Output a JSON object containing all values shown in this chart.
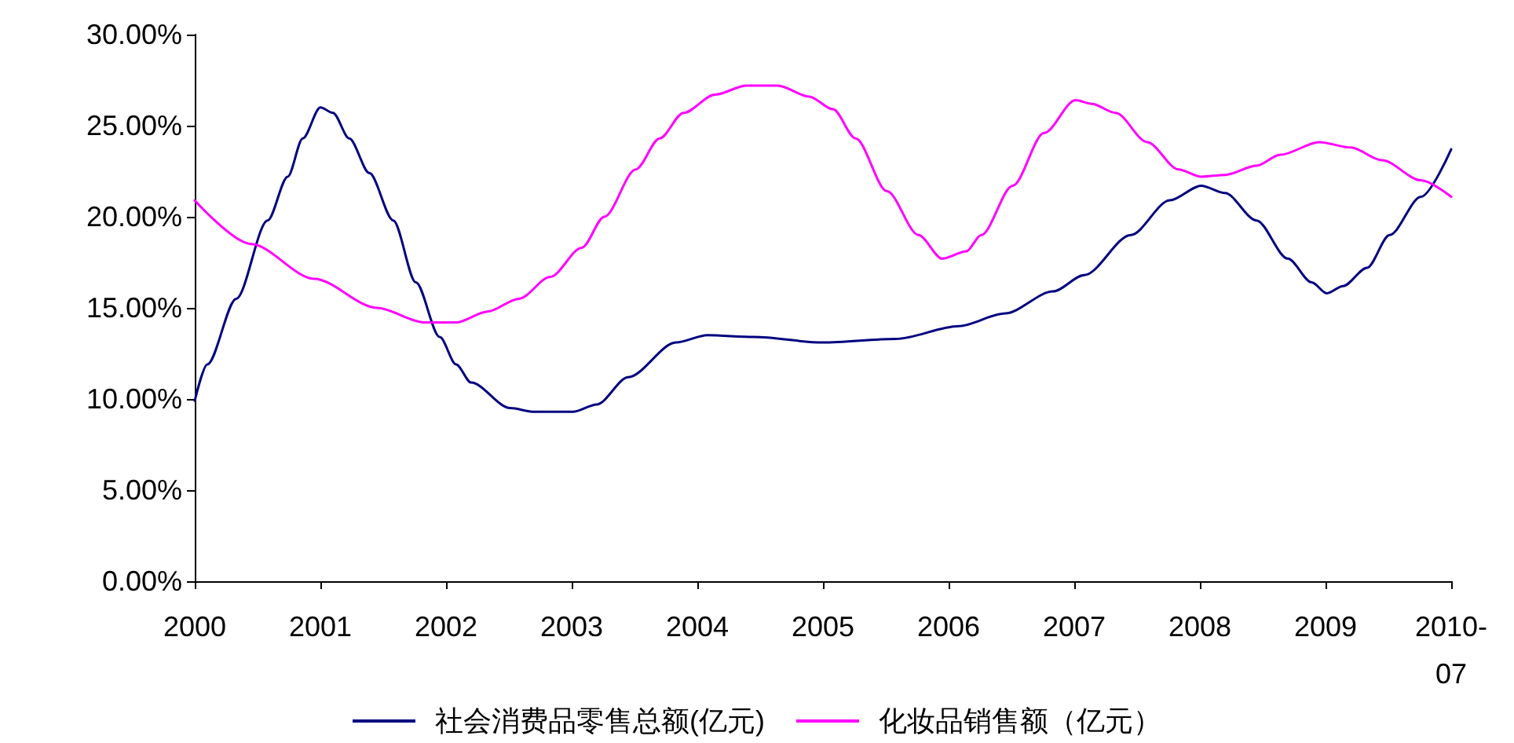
{
  "chart_data": {
    "type": "line",
    "xlim": [
      2000,
      2010
    ],
    "xticks": [
      2000,
      2001,
      2002,
      2003,
      2004,
      2005,
      2006,
      2007,
      2008,
      2009,
      {
        "value": 2010,
        "label": "2010-\n07"
      }
    ],
    "ylim": [
      0,
      30
    ],
    "yticks": [
      {
        "value": 0,
        "label": "0.00%"
      },
      {
        "value": 5,
        "label": "5.00%"
      },
      {
        "value": 10,
        "label": "10.00%"
      },
      {
        "value": 15,
        "label": "15.00%"
      },
      {
        "value": 20,
        "label": "20.00%"
      },
      {
        "value": 25,
        "label": "25.00%"
      },
      {
        "value": 30,
        "label": "30.00%"
      }
    ],
    "grid": false,
    "legend": "bottom",
    "marker": "none",
    "line_style": "solid",
    "series": [
      {
        "name": "社会消费品零售总额(亿元)",
        "color": "#000080",
        "x": [
          2000,
          2000.1,
          2000.33,
          2000.58,
          2000.74,
          2000.86,
          2001,
          2001.1,
          2001.23,
          2001.39,
          2001.58,
          2001.76,
          2001.95,
          2002.08,
          2002.2,
          2002.51,
          2002.7,
          2003.01,
          2003.2,
          2003.45,
          2003.83,
          2004.08,
          2004.45,
          2005,
          2005.58,
          2006.08,
          2006.45,
          2006.83,
          2007.08,
          2007.45,
          2007.76,
          2008.01,
          2008.2,
          2008.45,
          2008.7,
          2008.89,
          2009.01,
          2009.14,
          2009.33,
          2009.51,
          2009.76,
          2010
        ],
        "values": [
          9.9,
          11.9,
          15.5,
          19.8,
          22.2,
          24.3,
          26.0,
          25.7,
          24.3,
          22.4,
          19.8,
          16.4,
          13.4,
          11.9,
          10.9,
          9.5,
          9.3,
          9.3,
          9.7,
          11.2,
          13.1,
          13.5,
          13.4,
          13.1,
          13.3,
          14.0,
          14.7,
          15.9,
          16.8,
          19.0,
          20.9,
          21.7,
          21.3,
          19.8,
          17.7,
          16.4,
          15.8,
          16.2,
          17.2,
          19.0,
          21.1,
          23.7
        ]
      },
      {
        "name": "化妆品销售额（亿元）",
        "color": "#ff00ff",
        "x": [
          2000,
          2000.45,
          2000.95,
          2001.45,
          2001.83,
          2002.08,
          2002.33,
          2002.58,
          2002.83,
          2003.08,
          2003.26,
          2003.51,
          2003.7,
          2003.89,
          2004.14,
          2004.39,
          2004.64,
          2004.89,
          2005.08,
          2005.26,
          2005.51,
          2005.76,
          2005.95,
          2006.14,
          2006.26,
          2006.51,
          2006.76,
          2007.01,
          2007.14,
          2007.33,
          2007.58,
          2007.83,
          2008.01,
          2008.2,
          2008.45,
          2008.64,
          2008.95,
          2009.2,
          2009.45,
          2009.76,
          2010
        ],
        "values": [
          20.9,
          18.5,
          16.6,
          15.0,
          14.2,
          14.2,
          14.8,
          15.5,
          16.7,
          18.3,
          20.0,
          22.6,
          24.3,
          25.7,
          26.7,
          27.2,
          27.2,
          26.6,
          25.9,
          24.3,
          21.4,
          19.0,
          17.7,
          18.1,
          19.0,
          21.7,
          24.6,
          26.4,
          26.2,
          25.7,
          24.1,
          22.6,
          22.2,
          22.3,
          22.8,
          23.4,
          24.1,
          23.8,
          23.1,
          22.0,
          21.1
        ]
      }
    ]
  }
}
